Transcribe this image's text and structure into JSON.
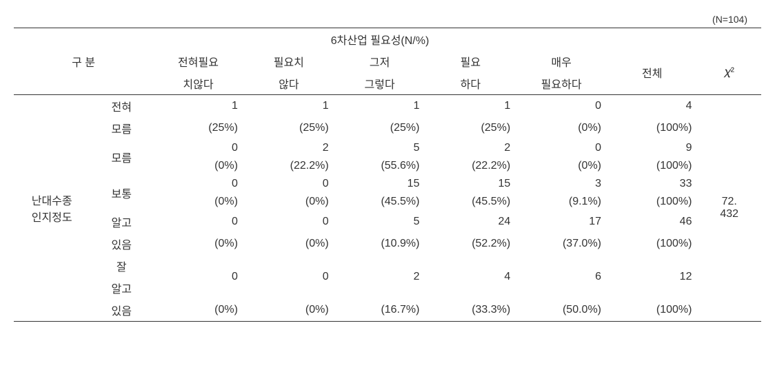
{
  "sample_label": "(N=104)",
  "header": {
    "category": "구 분",
    "group_title": "6차산업 필요성(N/%)",
    "cols": {
      "c1a": "전혀필요",
      "c1b": "치않다",
      "c2a": "필요치",
      "c2b": "않다",
      "c3a": "그저",
      "c3b": "그렇다",
      "c4a": "필요",
      "c4b": "하다",
      "c5a": "매우",
      "c5b": "필요하다",
      "total": "전체",
      "chi": "𝜒²"
    }
  },
  "row_category_a": "난대수종",
  "row_category_b": "인지정도",
  "rows": [
    {
      "label_a": "전혀",
      "label_b": "모름",
      "n": [
        "1",
        "1",
        "1",
        "1",
        "0",
        "4"
      ],
      "p": [
        "(25%)",
        "(25%)",
        "(25%)",
        "(25%)",
        "(0%)",
        "(100%)"
      ]
    },
    {
      "label_a": "모름",
      "label_b": "",
      "n": [
        "0",
        "2",
        "5",
        "2",
        "0",
        "9"
      ],
      "p": [
        "(0%)",
        "(22.2%)",
        "(55.6%)",
        "(22.2%)",
        "(0%)",
        "(100%)"
      ]
    },
    {
      "label_a": "보통",
      "label_b": "",
      "n": [
        "0",
        "0",
        "15",
        "15",
        "3",
        "33"
      ],
      "p": [
        "(0%)",
        "(0%)",
        "(45.5%)",
        "(45.5%)",
        "(9.1%)",
        "(100%)"
      ]
    },
    {
      "label_a": "알고",
      "label_b": "있음",
      "n": [
        "0",
        "0",
        "5",
        "24",
        "17",
        "46"
      ],
      "p": [
        "(0%)",
        "(0%)",
        "(10.9%)",
        "(52.2%)",
        "(37.0%)",
        "(100%)"
      ]
    },
    {
      "label_a": "잘",
      "label_b": "알고",
      "label_c": "있음",
      "n": [
        "0",
        "0",
        "2",
        "4",
        "6",
        "12"
      ],
      "p": [
        "(0%)",
        "(0%)",
        "(16.7%)",
        "(33.3%)",
        "(50.0%)",
        "(100%)"
      ]
    }
  ],
  "chi_a": "72.",
  "chi_b": "432"
}
